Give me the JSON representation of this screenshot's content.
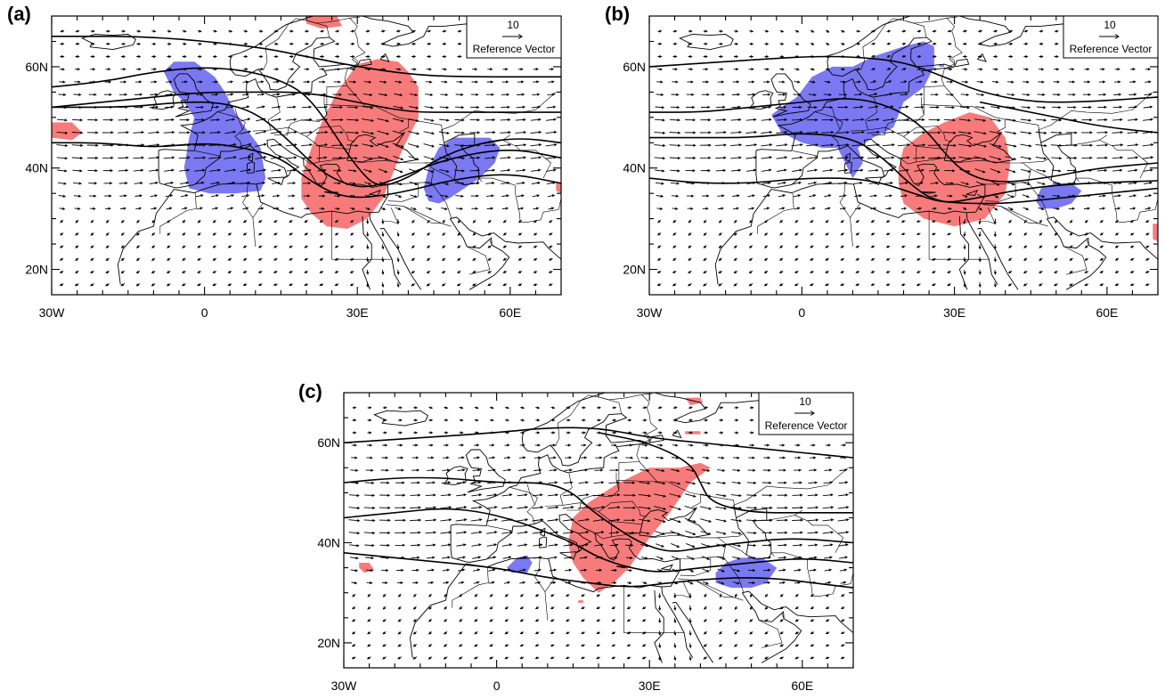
{
  "figure": {
    "panels": [
      {
        "label": "(a)"
      },
      {
        "label": "(b)"
      },
      {
        "label": "(c)"
      }
    ],
    "x_ticks": [
      "30W",
      "0",
      "30E",
      "60E"
    ],
    "y_ticks": [
      "20N",
      "40N",
      "60N"
    ],
    "reference_vector": {
      "magnitude": "10",
      "label": "Reference Vector"
    },
    "colors": {
      "positive_anomaly": "#f87b7b",
      "negative_anomaly": "#7a78f2",
      "contour": "#000000",
      "vector": "#000000"
    }
  },
  "map_extent": {
    "lon": [
      -30,
      70
    ],
    "lat": [
      15,
      70
    ]
  }
}
